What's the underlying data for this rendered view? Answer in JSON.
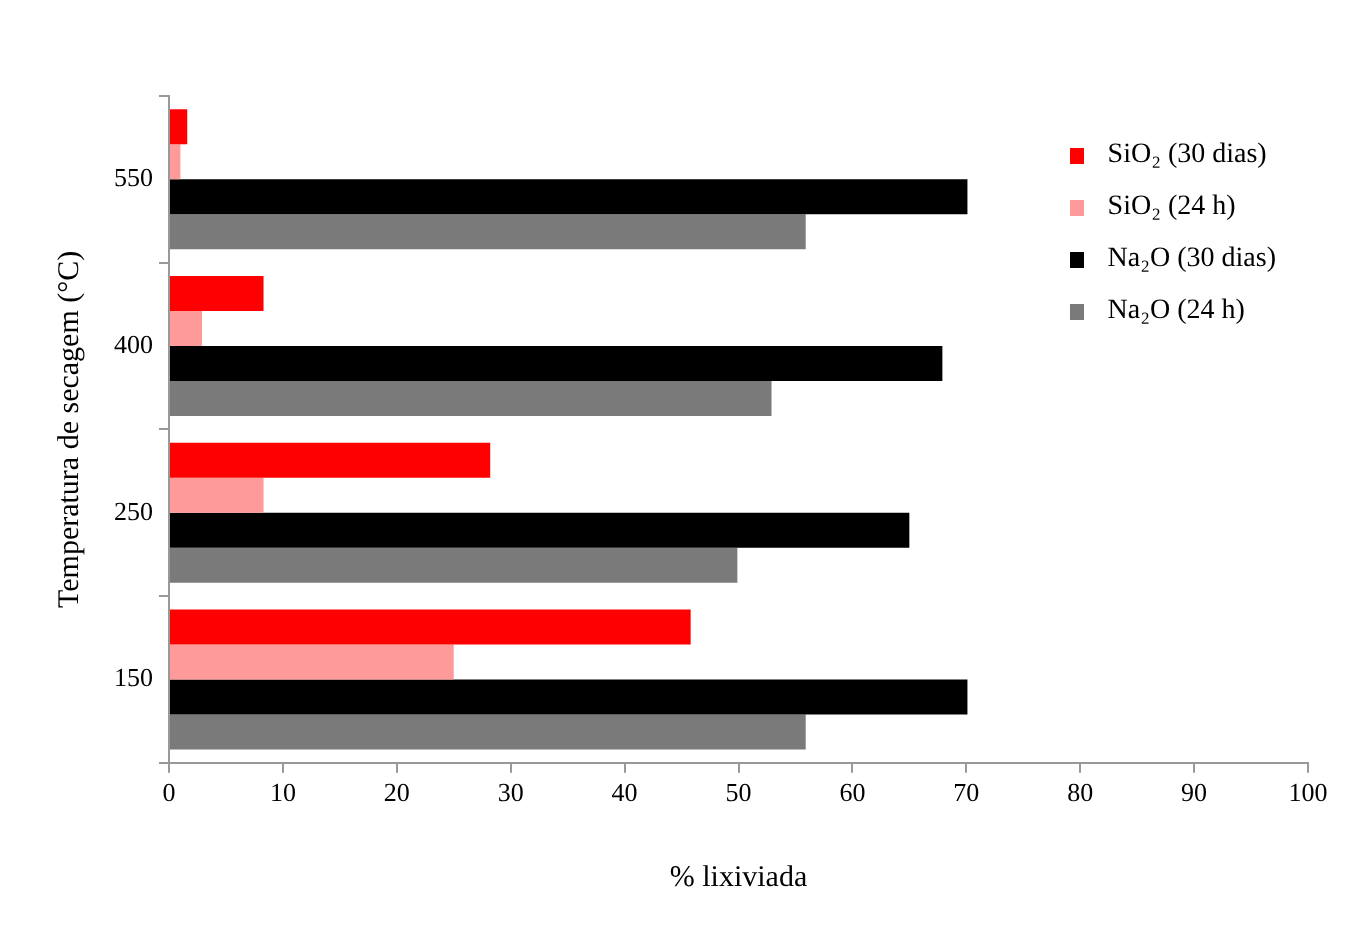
{
  "chart_data": {
    "type": "bar",
    "orientation": "horizontal",
    "xlabel": "% lixiviada",
    "ylabel": "Temperatura de secagem (°C)",
    "categories": [
      "550",
      "400",
      "250",
      "150"
    ],
    "series": [
      {
        "name": "SiO₂ (30 dias)",
        "color": "#ff0000",
        "values": [
          1.6,
          8.3,
          28.2,
          45.8
        ]
      },
      {
        "name": "SiO₂ (24 h)",
        "color": "#ff9a9a",
        "values": [
          1.0,
          2.9,
          8.3,
          25.0
        ]
      },
      {
        "name": "Na₂O (30 dias)",
        "color": "#000000",
        "values": [
          70.1,
          67.9,
          65.0,
          70.1
        ]
      },
      {
        "name": "Na₂O (24 h)",
        "color": "#7a7a7a",
        "values": [
          55.9,
          52.9,
          49.9,
          55.9
        ]
      }
    ],
    "xlim": [
      0,
      100
    ],
    "xticks": [
      0,
      10,
      20,
      30,
      40,
      50,
      60,
      70,
      80,
      90,
      100
    ],
    "grid": false,
    "legend": "top right"
  }
}
